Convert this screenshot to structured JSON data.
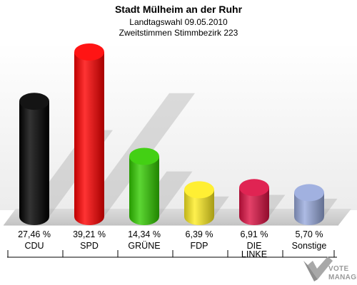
{
  "header": {
    "title": "Stadt Mülheim an der Ruhr",
    "subtitle1": "Landtagswahl 09.05.2010",
    "subtitle2": "Zweitstimmen Stimmbezirk 223"
  },
  "logo": {
    "line1": "VOTE",
    "line2": "MANAGER"
  },
  "chart_data": {
    "type": "bar",
    "title": "Stadt Mülheim an der Ruhr",
    "subtitle": "Landtagswahl 09.05.2010 / Zweitstimmen Stimmbezirk 223",
    "categories": [
      "CDU",
      "SPD",
      "GRÜNE",
      "FDP",
      "DIE LINKE",
      "Sonstige"
    ],
    "category_lines": [
      [
        "CDU"
      ],
      [
        "SPD"
      ],
      [
        "GRÜNE"
      ],
      [
        "FDP"
      ],
      [
        "DIE",
        "LINKE"
      ],
      [
        "Sonstige"
      ]
    ],
    "values": [
      27.46,
      39.21,
      14.34,
      6.39,
      6.91,
      5.7
    ],
    "labels": [
      "27,46 %",
      "39,21 %",
      "14,34 %",
      "6,39 %",
      "6,91 %",
      "5,70 %"
    ],
    "colors": [
      "#000000",
      "#ff0000",
      "#33cc00",
      "#ffee22",
      "#dd1144",
      "#99aadd"
    ],
    "unit": "%"
  }
}
